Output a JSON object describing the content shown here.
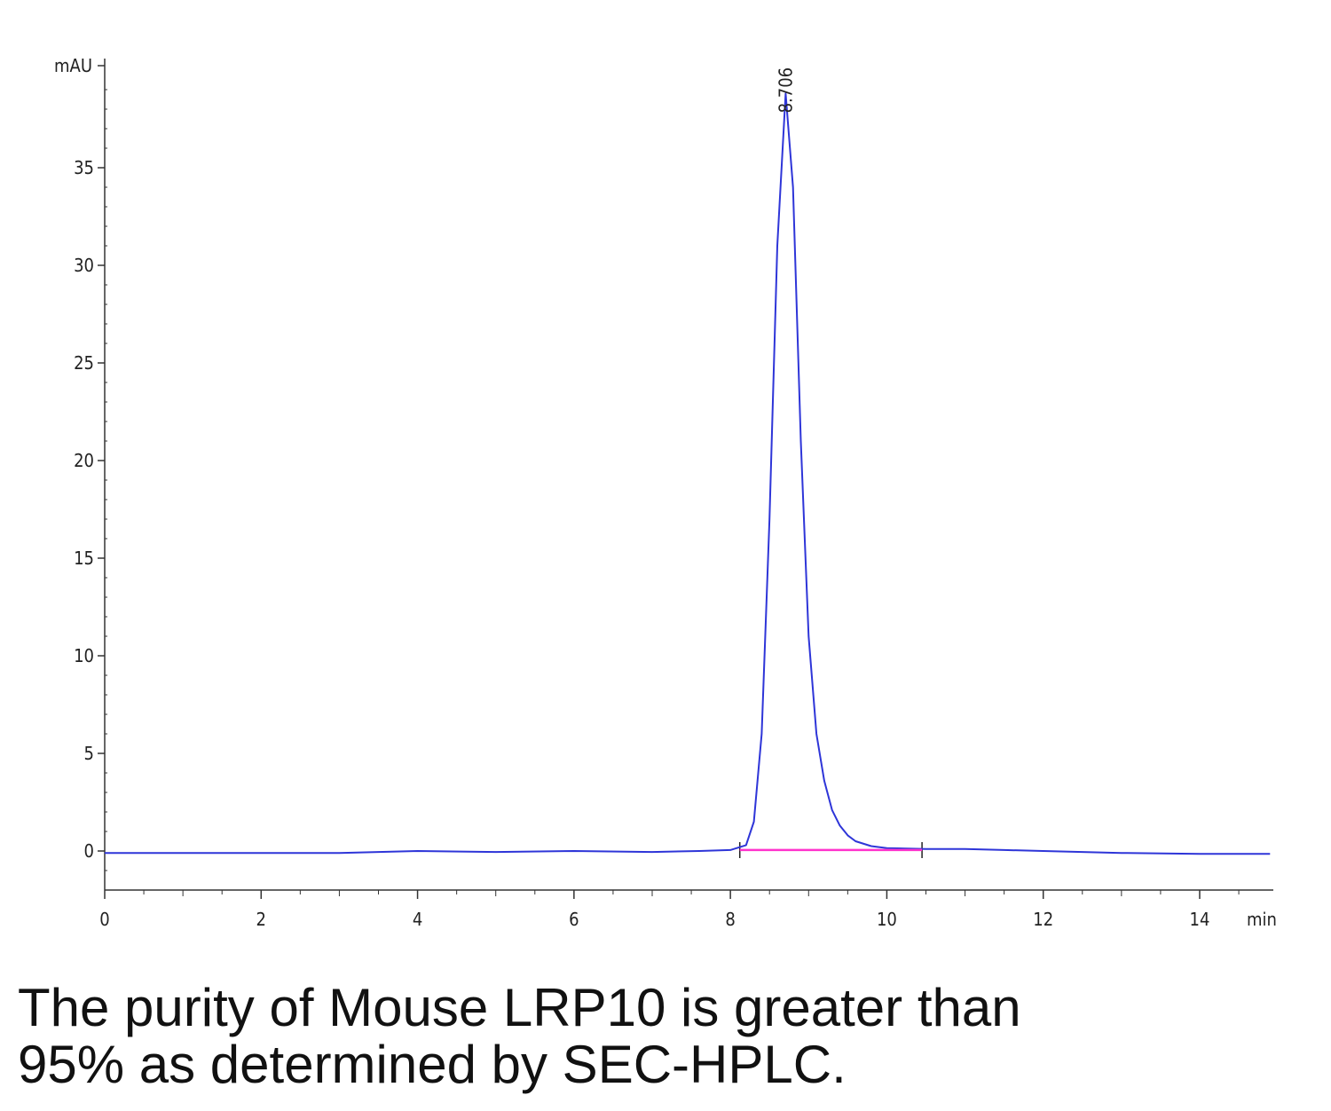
{
  "chart_data": {
    "type": "line",
    "title": "",
    "xlabel": "min",
    "ylabel": "mAU",
    "xlim": [
      0,
      14.9
    ],
    "ylim": [
      -2,
      40
    ],
    "x_ticks": [
      0,
      2,
      4,
      6,
      8,
      10,
      12,
      14
    ],
    "y_ticks": [
      0,
      5,
      10,
      15,
      20,
      25,
      30,
      35
    ],
    "grid": false,
    "series": [
      {
        "color": "#2e35d8",
        "points": [
          [
            0,
            -0.1
          ],
          [
            1,
            -0.1
          ],
          [
            2,
            -0.1
          ],
          [
            3,
            -0.1
          ],
          [
            4,
            0
          ],
          [
            5,
            -0.05
          ],
          [
            6,
            0
          ],
          [
            7,
            -0.05
          ],
          [
            7.6,
            0
          ],
          [
            8.0,
            0.05
          ],
          [
            8.2,
            0.3
          ],
          [
            8.3,
            1.5
          ],
          [
            8.4,
            6
          ],
          [
            8.5,
            17
          ],
          [
            8.6,
            31
          ],
          [
            8.706,
            38.8
          ],
          [
            8.8,
            34
          ],
          [
            8.9,
            21
          ],
          [
            9.0,
            11
          ],
          [
            9.1,
            6
          ],
          [
            9.2,
            3.6
          ],
          [
            9.3,
            2.1
          ],
          [
            9.4,
            1.3
          ],
          [
            9.5,
            0.8
          ],
          [
            9.6,
            0.5
          ],
          [
            9.8,
            0.25
          ],
          [
            10.0,
            0.15
          ],
          [
            10.5,
            0.1
          ],
          [
            11,
            0.1
          ],
          [
            11.5,
            0.05
          ],
          [
            12,
            0
          ],
          [
            12.5,
            -0.05
          ],
          [
            13,
            -0.1
          ],
          [
            14,
            -0.15
          ],
          [
            14.9,
            -0.15
          ]
        ]
      },
      {
        "color": "#ff33cc",
        "points": [
          [
            8.12,
            0.05
          ],
          [
            10.45,
            0.05
          ]
        ]
      }
    ],
    "peak_labels": [
      {
        "x": 8.706,
        "y": 38.8,
        "label": "8.706"
      }
    ],
    "baseline_marks": [
      8.12,
      10.45
    ]
  },
  "caption": {
    "line1": "The purity of Mouse LRP10 is greater than",
    "line2": "95% as determined by SEC-HPLC."
  }
}
